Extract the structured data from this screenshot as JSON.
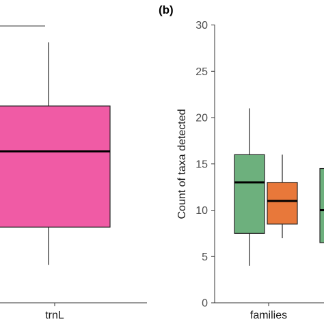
{
  "chart_data": [
    {
      "panel": "",
      "type": "box",
      "categories": [
        "trnL"
      ],
      "boxes": [
        {
          "category": "trnL",
          "color": "#F05BA5",
          "whisker_low": 2.5,
          "q1": 5.0,
          "median": 10.0,
          "q3": 13.0,
          "whisker_high": 17.2
        }
      ],
      "ylim": [
        0,
        20
      ],
      "xlabel": "",
      "ylabel": ""
    },
    {
      "panel": "(b)",
      "type": "box",
      "categories": [
        "families"
      ],
      "ylabel": "Count of taxa detected",
      "xlabel": "",
      "ylim": [
        0,
        31
      ],
      "yticks": [
        0,
        5,
        10,
        15,
        20,
        25,
        30
      ],
      "boxes": [
        {
          "category": "families",
          "color": "#6DB07D",
          "whisker_low": 4,
          "q1": 7.5,
          "median": 13,
          "q3": 16,
          "whisker_high": 21
        },
        {
          "category": "families",
          "color": "#E8783A",
          "whisker_low": 7,
          "q1": 8.5,
          "median": 11,
          "q3": 13,
          "whisker_high": 16
        },
        {
          "category": "",
          "color": "#6DB07D",
          "whisker_low": 6.5,
          "q1": 6.5,
          "median": 10,
          "q3": 14.5,
          "whisker_high": 14.5
        }
      ]
    }
  ]
}
